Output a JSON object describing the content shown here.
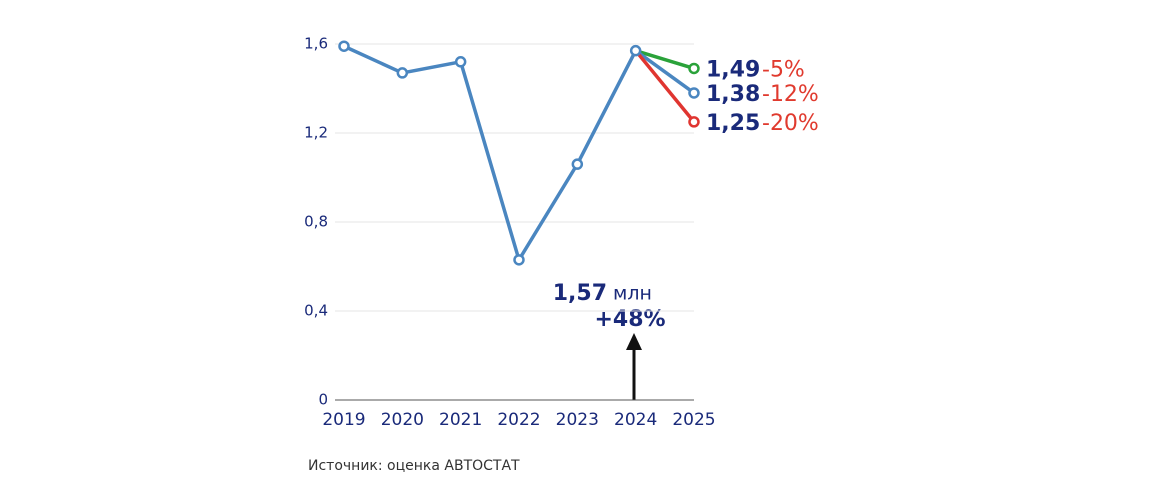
{
  "chart_data": {
    "type": "line",
    "categories": [
      "2019",
      "2020",
      "2021",
      "2022",
      "2023",
      "2024",
      "2025"
    ],
    "series": [
      {
        "color": "#4a86c0",
        "values": [
          1.59,
          1.47,
          1.52,
          0.63,
          1.06,
          1.57,
          null
        ]
      },
      {
        "color": "#2aa23a",
        "values": [
          null,
          null,
          null,
          null,
          null,
          1.57,
          1.49
        ],
        "value_labels": [
          null,
          null,
          null,
          null,
          null,
          null,
          "1,49"
        ],
        "change": "-5%"
      },
      {
        "color": "#4a86c0",
        "values": [
          null,
          null,
          null,
          null,
          null,
          1.57,
          1.38
        ],
        "value_labels": [
          null,
          null,
          null,
          null,
          null,
          null,
          "1,38"
        ],
        "change": "-12%"
      },
      {
        "color": "#e03530",
        "values": [
          null,
          null,
          null,
          null,
          null,
          1.57,
          1.25
        ],
        "value_labels": [
          null,
          null,
          null,
          null,
          null,
          null,
          "1,25"
        ],
        "change": "-20%"
      }
    ],
    "ylim": [
      0,
      1.6
    ],
    "yticks": [
      0,
      {
        "value": 0.4,
        "label": "0,4"
      },
      {
        "value": 0.8,
        "label": "0,8"
      },
      {
        "value": 1.2,
        "label": "1,2"
      },
      {
        "value": 1.6,
        "label": "1,6"
      }
    ],
    "grid": true,
    "annotation": {
      "value": "1,57",
      "unit": "млн",
      "growth": "+48%"
    },
    "source": "Источник: оценка АВТОСТАТ"
  }
}
